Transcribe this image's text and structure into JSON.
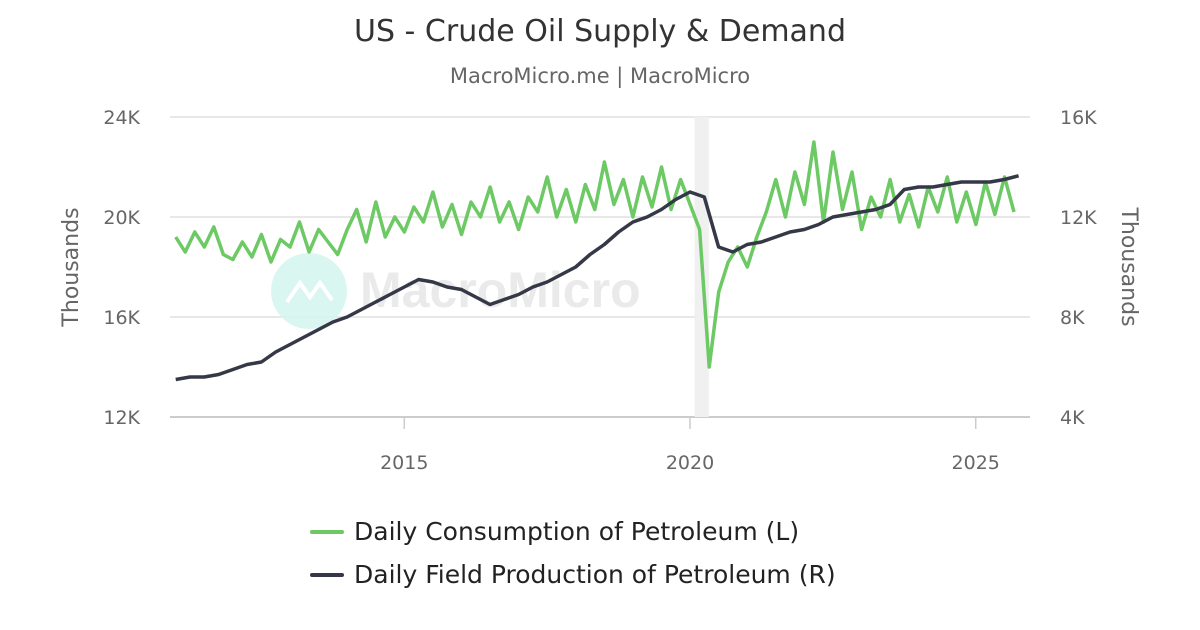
{
  "chart_data": {
    "type": "line",
    "title": "US - Crude Oil Supply & Demand",
    "subtitle": "MacroMicro.me | MacroMicro",
    "watermark": "MacroMicro",
    "x_ticks": [
      "2015",
      "2020",
      "2025"
    ],
    "x_tick_values": [
      2015,
      2020,
      2025
    ],
    "xlim": [
      2010.9,
      2025.95
    ],
    "y_left": {
      "label": "Thousands",
      "ticks": [
        "12K",
        "16K",
        "20K",
        "24K"
      ],
      "tick_values": [
        12,
        16,
        20,
        24
      ],
      "ylim": [
        12,
        24
      ]
    },
    "y_right": {
      "label": "Thousands",
      "ticks": [
        "4K",
        "8K",
        "12K",
        "16K"
      ],
      "tick_values": [
        4,
        8,
        12,
        16
      ],
      "ylim": [
        4,
        16
      ]
    },
    "grid": true,
    "shaded_period": [
      2020.08,
      2020.33
    ],
    "legend_position": "bottom",
    "series": [
      {
        "name": "Daily Consumption of Petroleum (L)",
        "axis": "left",
        "color": "#6cc964",
        "x_start": 2011.0,
        "x_step": 0.1667,
        "values": [
          19.2,
          18.6,
          19.4,
          18.8,
          19.6,
          18.5,
          18.3,
          19.0,
          18.4,
          19.3,
          18.2,
          19.1,
          18.8,
          19.8,
          18.6,
          19.5,
          19.0,
          18.5,
          19.5,
          20.3,
          19.0,
          20.6,
          19.2,
          20.0,
          19.4,
          20.4,
          19.8,
          21.0,
          19.6,
          20.5,
          19.3,
          20.6,
          20.0,
          21.2,
          19.8,
          20.6,
          19.5,
          20.8,
          20.2,
          21.6,
          20.0,
          21.1,
          19.8,
          21.3,
          20.3,
          22.2,
          20.5,
          21.5,
          20.0,
          21.6,
          20.4,
          22.0,
          20.3,
          21.5,
          20.5,
          19.5,
          14.0,
          17.0,
          18.2,
          18.8,
          18.0,
          19.2,
          20.2,
          21.5,
          20.0,
          21.8,
          20.5,
          23.0,
          19.8,
          22.6,
          20.3,
          21.8,
          19.5,
          20.8,
          20.0,
          21.5,
          19.8,
          20.9,
          19.6,
          21.2,
          20.2,
          21.6,
          19.8,
          21.0,
          19.7,
          21.4,
          20.1,
          21.6,
          20.2
        ]
      },
      {
        "name": "Daily Field Production of Petroleum (R)",
        "axis": "right",
        "color": "#353846",
        "x_start": 2011.0,
        "x_step": 0.25,
        "values": [
          5.5,
          5.6,
          5.6,
          5.7,
          5.9,
          6.1,
          6.2,
          6.6,
          6.9,
          7.2,
          7.5,
          7.8,
          8.0,
          8.3,
          8.6,
          8.9,
          9.2,
          9.5,
          9.4,
          9.2,
          9.1,
          8.8,
          8.5,
          8.7,
          8.9,
          9.2,
          9.4,
          9.7,
          10.0,
          10.5,
          10.9,
          11.4,
          11.8,
          12.0,
          12.3,
          12.7,
          13.0,
          12.8,
          10.8,
          10.6,
          10.9,
          11.0,
          11.2,
          11.4,
          11.5,
          11.7,
          12.0,
          12.1,
          12.2,
          12.3,
          12.5,
          13.1,
          13.2,
          13.2,
          13.3,
          13.4,
          13.4,
          13.4,
          13.5,
          13.65
        ]
      }
    ]
  }
}
